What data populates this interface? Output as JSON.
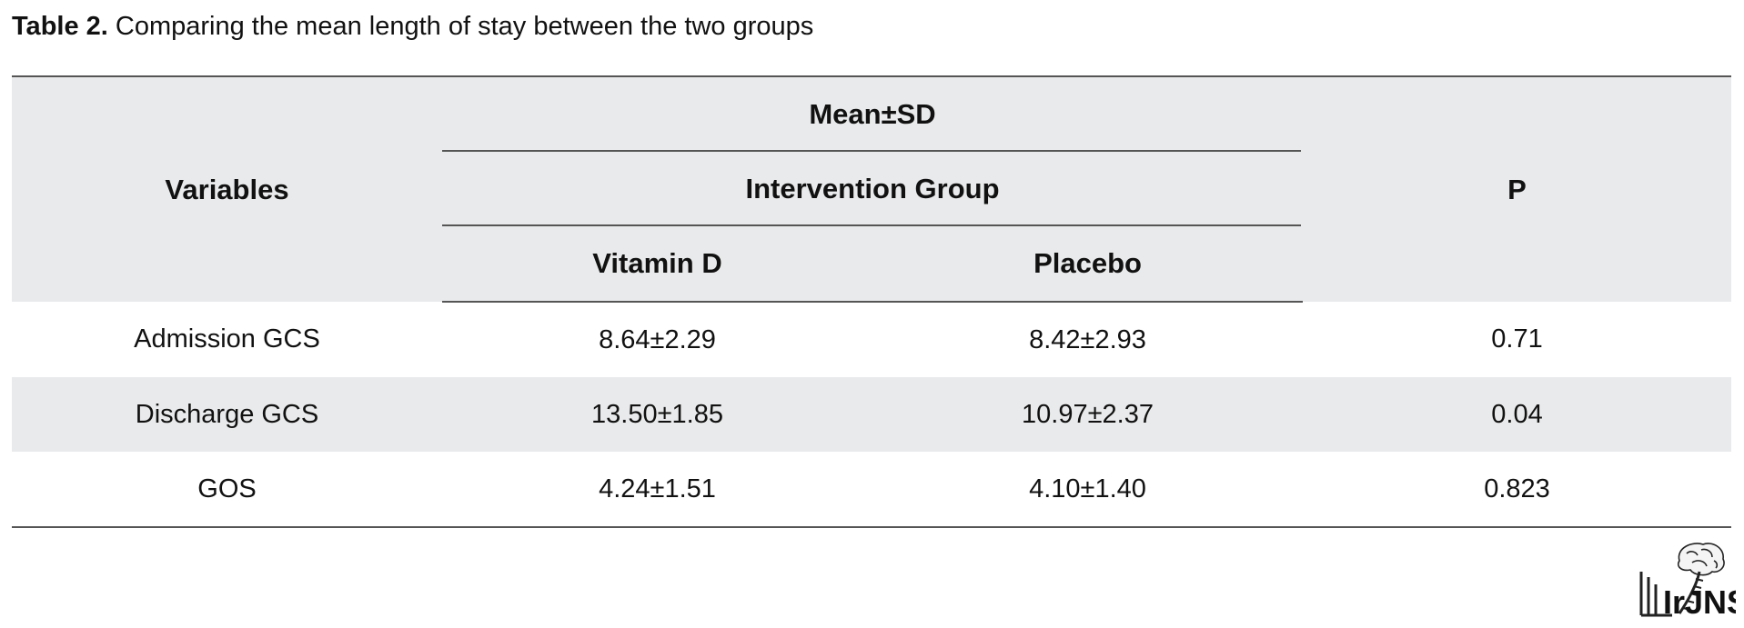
{
  "caption": {
    "label": "Table 2.",
    "text": " Comparing the mean length of stay between the two groups"
  },
  "table": {
    "header": {
      "variables": "Variables",
      "group_top": "Mean±SD",
      "group_mid": "Intervention Group",
      "col_vitamin": "Vitamin D",
      "col_placebo": "Placebo",
      "col_p": "P"
    },
    "rows": [
      {
        "variable": "Admission GCS",
        "vitamin": "8.64±2.29",
        "placebo": "8.42±2.93",
        "p": "0.71"
      },
      {
        "variable": "Discharge GCS",
        "vitamin": "13.50±1.85",
        "placebo": "10.97±2.37",
        "p": "0.04"
      },
      {
        "variable": "GOS",
        "vitamin": "4.24±1.51",
        "placebo": "4.10±1.40",
        "p": "0.823"
      }
    ]
  },
  "logo": {
    "text": "IrJNS",
    "icon": "brain-spine-icon"
  }
}
